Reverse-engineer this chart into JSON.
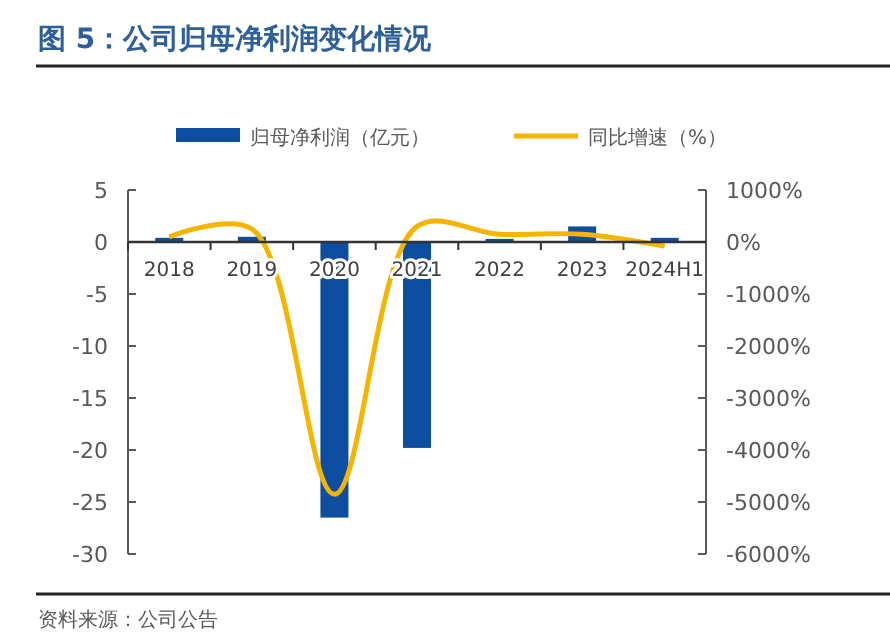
{
  "chart_data": {
    "type": "bar",
    "title": "图 5：公司归母净利润变化情况",
    "categories": [
      "2018",
      "2019",
      "2020",
      "2021",
      "2022",
      "2023",
      "2024H1"
    ],
    "series": [
      {
        "name": "归母净利润（亿元）",
        "color": "#0d4ea0",
        "values": [
          0.4,
          0.5,
          -26.5,
          -19.8,
          0.3,
          1.5,
          0.4
        ]
      },
      {
        "name": "同比增速（%）",
        "type": "line",
        "axis": "y2",
        "color": "#f5b400",
        "values": [
          100,
          250,
          -4850,
          300,
          150,
          150,
          -80
        ]
      }
    ],
    "ylim": [
      -30,
      5
    ],
    "yticks": [
      -30,
      -25,
      -20,
      -15,
      -10,
      -5,
      0,
      5
    ],
    "y2lim": [
      -6000,
      1000
    ],
    "y2ticks": [
      {
        "value": -6000,
        "label": "-6000%"
      },
      {
        "value": -5000,
        "label": "-5000%"
      },
      {
        "value": -4000,
        "label": "-4000%"
      },
      {
        "value": -3000,
        "label": "-3000%"
      },
      {
        "value": -2000,
        "label": "-2000%"
      },
      {
        "value": -1000,
        "label": "-1000%"
      },
      {
        "value": 0,
        "label": "0%"
      },
      {
        "value": 1000,
        "label": "1000%"
      }
    ],
    "legend": "top",
    "grid": false,
    "marker": "none",
    "annotations": [
      "资料来源：公司公告"
    ]
  }
}
